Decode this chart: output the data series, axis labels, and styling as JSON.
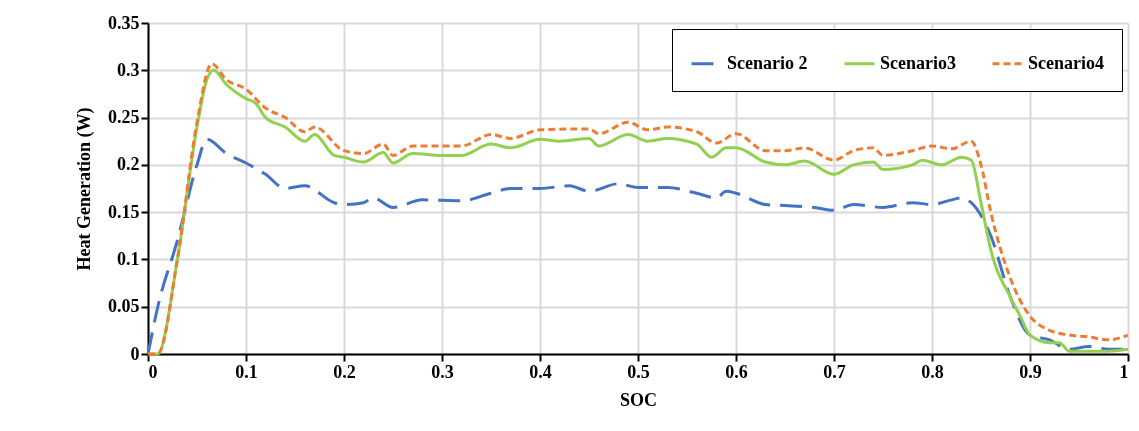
{
  "chart_data": {
    "type": "line",
    "xlabel": "SOC",
    "ylabel": "Heat Generation (W)",
    "xlim": [
      0,
      1
    ],
    "xticks": [
      0,
      0.1,
      0.2,
      0.3,
      0.4,
      0.5,
      0.6,
      0.7,
      0.8,
      0.9,
      1
    ],
    "ylim": [
      0,
      0.35
    ],
    "yticks": [
      0,
      0.05,
      0.1,
      0.15,
      0.2,
      0.25,
      0.3,
      0.35
    ],
    "grid": true,
    "legend": "top right",
    "marker": "none",
    "series": [
      {
        "name": "Scenario 2",
        "color": "#4472c4",
        "line_style": "dashed",
        "x": [
          0,
          0.01,
          0.03,
          0.05,
          0.06,
          0.08,
          0.1,
          0.12,
          0.14,
          0.16,
          0.19,
          0.2,
          0.22,
          0.23,
          0.25,
          0.28,
          0.32,
          0.35,
          0.37,
          0.4,
          0.43,
          0.45,
          0.48,
          0.5,
          0.53,
          0.56,
          0.58,
          0.59,
          0.6,
          0.63,
          0.65,
          0.68,
          0.7,
          0.72,
          0.75,
          0.78,
          0.8,
          0.82,
          0.83,
          0.84,
          0.86,
          0.88,
          0.9,
          0.92,
          0.94,
          0.96,
          0.98,
          1
        ],
        "values": [
          0,
          0.05,
          0.12,
          0.2,
          0.227,
          0.212,
          0.202,
          0.19,
          0.175,
          0.178,
          0.16,
          0.158,
          0.16,
          0.165,
          0.155,
          0.163,
          0.162,
          0.17,
          0.175,
          0.175,
          0.178,
          0.172,
          0.18,
          0.176,
          0.176,
          0.17,
          0.165,
          0.172,
          0.17,
          0.158,
          0.157,
          0.155,
          0.152,
          0.158,
          0.155,
          0.16,
          0.158,
          0.163,
          0.165,
          0.16,
          0.125,
          0.06,
          0.02,
          0.015,
          0.005,
          0.008,
          0.005,
          0.005
        ]
      },
      {
        "name": "Scenario3",
        "color": "#92d050",
        "line_style": "solid",
        "x": [
          0,
          0.01,
          0.03,
          0.05,
          0.06,
          0.067,
          0.08,
          0.1,
          0.11,
          0.12,
          0.14,
          0.16,
          0.17,
          0.19,
          0.2,
          0.22,
          0.24,
          0.25,
          0.27,
          0.3,
          0.32,
          0.35,
          0.37,
          0.4,
          0.42,
          0.45,
          0.46,
          0.49,
          0.51,
          0.53,
          0.56,
          0.575,
          0.59,
          0.6,
          0.63,
          0.65,
          0.67,
          0.7,
          0.72,
          0.74,
          0.75,
          0.78,
          0.79,
          0.81,
          0.83,
          0.84,
          0.85,
          0.86,
          0.88,
          0.89,
          0.9,
          0.92,
          0.93,
          0.94,
          0.96,
          0.98,
          1
        ],
        "values": [
          0,
          0,
          0.1,
          0.24,
          0.29,
          0.3,
          0.285,
          0.27,
          0.265,
          0.25,
          0.24,
          0.225,
          0.232,
          0.21,
          0.208,
          0.203,
          0.213,
          0.202,
          0.212,
          0.21,
          0.21,
          0.222,
          0.218,
          0.227,
          0.225,
          0.228,
          0.22,
          0.232,
          0.225,
          0.228,
          0.222,
          0.208,
          0.218,
          0.218,
          0.203,
          0.2,
          0.204,
          0.19,
          0.2,
          0.203,
          0.195,
          0.2,
          0.205,
          0.2,
          0.208,
          0.205,
          0.16,
          0.11,
          0.06,
          0.04,
          0.02,
          0.012,
          0.012,
          0.003,
          0.003,
          0.003,
          0.005
        ]
      },
      {
        "name": "Scenario4",
        "color": "#ed7d31",
        "line_style": "dotted",
        "x": [
          0,
          0.01,
          0.03,
          0.05,
          0.065,
          0.08,
          0.1,
          0.12,
          0.14,
          0.16,
          0.17,
          0.2,
          0.22,
          0.24,
          0.25,
          0.27,
          0.32,
          0.35,
          0.37,
          0.4,
          0.45,
          0.46,
          0.49,
          0.51,
          0.53,
          0.56,
          0.58,
          0.6,
          0.63,
          0.65,
          0.67,
          0.7,
          0.72,
          0.74,
          0.75,
          0.78,
          0.8,
          0.82,
          0.84,
          0.85,
          0.86,
          0.88,
          0.9,
          0.92,
          0.94,
          0.96,
          0.98,
          1
        ],
        "values": [
          0,
          0,
          0.1,
          0.245,
          0.307,
          0.29,
          0.28,
          0.26,
          0.25,
          0.235,
          0.24,
          0.215,
          0.212,
          0.222,
          0.21,
          0.22,
          0.22,
          0.232,
          0.228,
          0.237,
          0.238,
          0.233,
          0.245,
          0.237,
          0.24,
          0.235,
          0.223,
          0.233,
          0.215,
          0.215,
          0.218,
          0.205,
          0.215,
          0.218,
          0.21,
          0.215,
          0.22,
          0.217,
          0.225,
          0.2,
          0.15,
          0.08,
          0.04,
          0.025,
          0.02,
          0.018,
          0.015,
          0.02
        ]
      }
    ]
  }
}
